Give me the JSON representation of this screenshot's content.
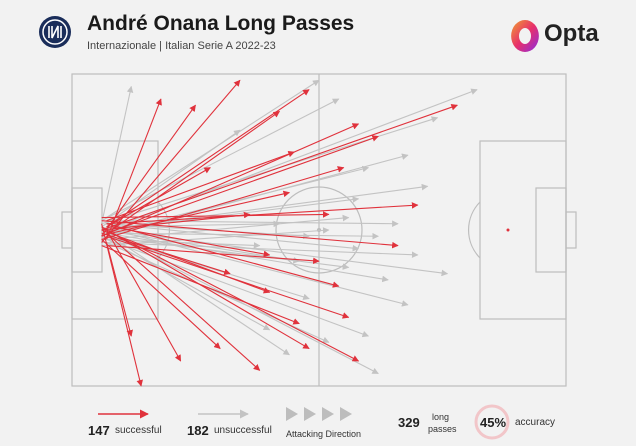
{
  "header": {
    "title": "André Onana Long Passes",
    "subtitle": "Internazionale | Italian Serie A 2022-23",
    "brand": "Opta"
  },
  "colors": {
    "successful": "#e0323c",
    "unsuccessful": "#c3c3c3",
    "pitch_lines": "#bdbdbd",
    "club_logo": "#1a2d5a",
    "brand_grad_start": "#f0a030",
    "brand_grad_end": "#8a2be2"
  },
  "legend": {
    "successful_count": "147",
    "successful_label": "successful",
    "unsuccessful_count": "182",
    "unsuccessful_label": "unsuccessful",
    "direction_label": "Attacking Direction",
    "total_count": "329",
    "total_label_1": "long",
    "total_label_2": "passes",
    "accuracy_value": "45%",
    "accuracy_label": "accuracy"
  },
  "chart_data": {
    "type": "pass_map",
    "x_range": [
      0,
      100
    ],
    "y_range": [
      0,
      100
    ],
    "successful_count": 147,
    "unsuccessful_count": 182,
    "total": 329,
    "accuracy_pct": 45,
    "successful_passes": [
      {
        "x0": 7,
        "y0": 49,
        "x1": 48,
        "y1": 5
      },
      {
        "x0": 6,
        "y0": 50,
        "x1": 78,
        "y1": 10
      },
      {
        "x0": 7,
        "y0": 51,
        "x1": 62,
        "y1": 20
      },
      {
        "x0": 6,
        "y0": 52,
        "x1": 58,
        "y1": 16
      },
      {
        "x0": 7,
        "y0": 48,
        "x1": 70,
        "y1": 42
      },
      {
        "x0": 6,
        "y0": 53,
        "x1": 55,
        "y1": 30
      },
      {
        "x0": 7,
        "y0": 47,
        "x1": 45,
        "y1": 25
      },
      {
        "x0": 6,
        "y0": 54,
        "x1": 34,
        "y1": 2
      },
      {
        "x0": 8,
        "y0": 50,
        "x1": 42,
        "y1": 12
      },
      {
        "x0": 6,
        "y0": 46,
        "x1": 52,
        "y1": 45
      },
      {
        "x0": 7,
        "y0": 55,
        "x1": 50,
        "y1": 60
      },
      {
        "x0": 6,
        "y0": 50,
        "x1": 40,
        "y1": 70
      },
      {
        "x0": 7,
        "y0": 52,
        "x1": 56,
        "y1": 78
      },
      {
        "x0": 6,
        "y0": 49,
        "x1": 48,
        "y1": 88
      },
      {
        "x0": 7,
        "y0": 51,
        "x1": 38,
        "y1": 95
      },
      {
        "x0": 6,
        "y0": 53,
        "x1": 30,
        "y1": 88
      },
      {
        "x0": 7,
        "y0": 50,
        "x1": 22,
        "y1": 92
      },
      {
        "x0": 6,
        "y0": 48,
        "x1": 14,
        "y1": 100
      },
      {
        "x0": 7,
        "y0": 54,
        "x1": 12,
        "y1": 84
      },
      {
        "x0": 6,
        "y0": 47,
        "x1": 66,
        "y1": 55
      },
      {
        "x0": 8,
        "y0": 51,
        "x1": 44,
        "y1": 38
      },
      {
        "x0": 6,
        "y0": 50,
        "x1": 36,
        "y1": 45
      },
      {
        "x0": 7,
        "y0": 49,
        "x1": 28,
        "y1": 30
      },
      {
        "x0": 6,
        "y0": 52,
        "x1": 25,
        "y1": 10
      },
      {
        "x0": 7,
        "y0": 53,
        "x1": 18,
        "y1": 8
      },
      {
        "x0": 8,
        "y0": 49,
        "x1": 40,
        "y1": 58
      },
      {
        "x0": 6,
        "y0": 51,
        "x1": 32,
        "y1": 64
      },
      {
        "x0": 7,
        "y0": 48,
        "x1": 54,
        "y1": 68
      },
      {
        "x0": 6,
        "y0": 55,
        "x1": 46,
        "y1": 80
      },
      {
        "x0": 7,
        "y0": 50,
        "x1": 58,
        "y1": 92
      }
    ],
    "unsuccessful_passes": [
      {
        "x0": 7,
        "y0": 50,
        "x1": 82,
        "y1": 5
      },
      {
        "x0": 6,
        "y0": 48,
        "x1": 74,
        "y1": 14
      },
      {
        "x0": 7,
        "y0": 52,
        "x1": 68,
        "y1": 26
      },
      {
        "x0": 6,
        "y0": 50,
        "x1": 72,
        "y1": 36
      },
      {
        "x0": 7,
        "y0": 47,
        "x1": 66,
        "y1": 48
      },
      {
        "x0": 6,
        "y0": 54,
        "x1": 70,
        "y1": 58
      },
      {
        "x0": 7,
        "y0": 51,
        "x1": 64,
        "y1": 66
      },
      {
        "x0": 6,
        "y0": 49,
        "x1": 68,
        "y1": 74
      },
      {
        "x0": 7,
        "y0": 53,
        "x1": 60,
        "y1": 84
      },
      {
        "x0": 6,
        "y0": 50,
        "x1": 62,
        "y1": 96
      },
      {
        "x0": 7,
        "y0": 46,
        "x1": 50,
        "y1": 2
      },
      {
        "x0": 6,
        "y0": 55,
        "x1": 52,
        "y1": 50
      },
      {
        "x0": 7,
        "y0": 50,
        "x1": 58,
        "y1": 40
      },
      {
        "x0": 6,
        "y0": 52,
        "x1": 56,
        "y1": 62
      },
      {
        "x0": 7,
        "y0": 48,
        "x1": 48,
        "y1": 52
      },
      {
        "x0": 6,
        "y0": 51,
        "x1": 62,
        "y1": 52
      },
      {
        "x0": 7,
        "y0": 49,
        "x1": 42,
        "y1": 48
      },
      {
        "x0": 6,
        "y0": 53,
        "x1": 38,
        "y1": 55
      },
      {
        "x0": 7,
        "y0": 50,
        "x1": 76,
        "y1": 64
      },
      {
        "x0": 6,
        "y0": 47,
        "x1": 54,
        "y1": 8
      },
      {
        "x0": 7,
        "y0": 52,
        "x1": 48,
        "y1": 72
      },
      {
        "x0": 6,
        "y0": 50,
        "x1": 44,
        "y1": 90
      },
      {
        "x0": 7,
        "y0": 54,
        "x1": 52,
        "y1": 86
      },
      {
        "x0": 6,
        "y0": 48,
        "x1": 12,
        "y1": 4
      },
      {
        "x0": 7,
        "y0": 51,
        "x1": 60,
        "y1": 30
      },
      {
        "x0": 6,
        "y0": 49,
        "x1": 34,
        "y1": 18
      },
      {
        "x0": 7,
        "y0": 53,
        "x1": 56,
        "y1": 46
      },
      {
        "x0": 6,
        "y0": 50,
        "x1": 46,
        "y1": 60
      },
      {
        "x0": 7,
        "y0": 48,
        "x1": 58,
        "y1": 56
      },
      {
        "x0": 6,
        "y0": 52,
        "x1": 40,
        "y1": 82
      }
    ]
  }
}
